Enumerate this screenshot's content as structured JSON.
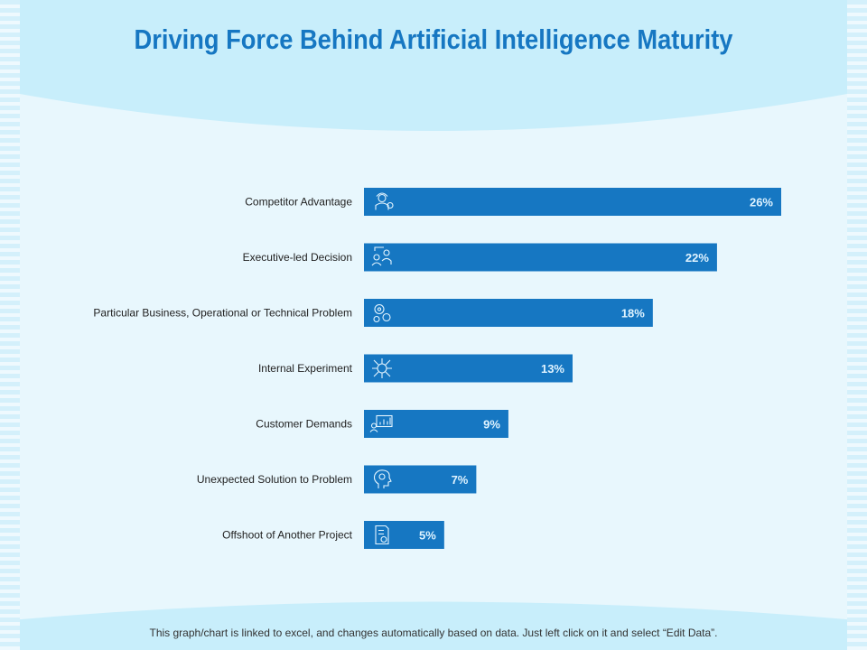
{
  "page": {
    "title": "Driving Force Behind Artificial Intelligence Maturity",
    "footnote": "This graph/chart is linked to excel, and changes automatically based on data. Just left click on it and select “Edit Data”."
  },
  "colors": {
    "bar": "#1677c2",
    "title": "#1677c2",
    "label_text": "#222222",
    "bar_text": "#dff3ff",
    "icon_stroke": "#e6f6ff"
  },
  "chart_data": {
    "type": "bar",
    "orientation": "horizontal",
    "title": "Driving Force Behind Artificial Intelligence Maturity",
    "xlabel": "",
    "ylabel": "",
    "xlim": [
      0,
      26
    ],
    "value_suffix": "%",
    "categories": [
      "Competitor Advantage",
      "Executive-led Decision",
      "Particular Business, Operational or Technical Problem",
      "Internal Experiment",
      "Customer Demands",
      "Unexpected Solution to Problem",
      "Offshoot of Another Project"
    ],
    "values": [
      26,
      22,
      18,
      13,
      9,
      7,
      5
    ],
    "icons": [
      "worker-gear-icon",
      "executive-team-icon",
      "gears-icon",
      "circuit-chip-icon",
      "presentation-chart-icon",
      "head-gear-icon",
      "document-gear-icon"
    ]
  }
}
